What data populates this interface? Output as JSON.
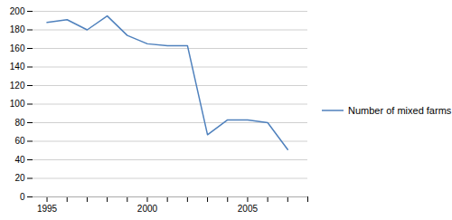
{
  "chart_data": {
    "type": "line",
    "x": [
      1995,
      1996,
      1997,
      1998,
      1999,
      2000,
      2001,
      2002,
      2003,
      2004,
      2005,
      2006,
      2007
    ],
    "series": [
      {
        "name": "Number of mixed farms",
        "color": "#4f81bd",
        "values": [
          188,
          191,
          180,
          195,
          174,
          165,
          163,
          163,
          67,
          83,
          83,
          80,
          51
        ]
      }
    ],
    "xlim": [
      1994.3,
      2008.0
    ],
    "xticks": [
      1995,
      {
        "value": 1996,
        "label": null
      },
      {
        "value": 1997,
        "label": null
      },
      {
        "value": 1998,
        "label": null
      },
      {
        "value": 1999,
        "label": null
      },
      2000,
      {
        "value": 2001,
        "label": null
      },
      {
        "value": 2002,
        "label": null
      },
      {
        "value": 2003,
        "label": null
      },
      {
        "value": 2004,
        "label": null
      },
      2005,
      {
        "value": 2006,
        "label": null
      },
      {
        "value": 2007,
        "label": null
      },
      {
        "value": 2008,
        "label": null
      }
    ],
    "ylim": [
      0,
      200
    ],
    "yticks": [
      0,
      20,
      40,
      60,
      80,
      100,
      120,
      140,
      160,
      180,
      200
    ],
    "grid": "y",
    "legend": "right"
  }
}
